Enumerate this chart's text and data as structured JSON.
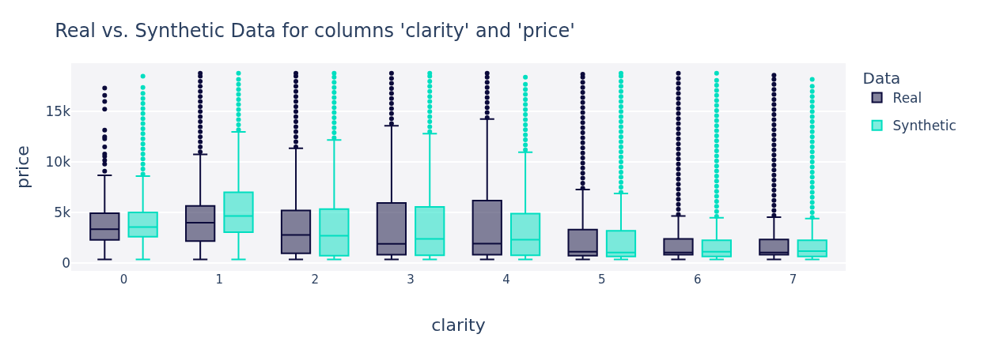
{
  "chart_data": {
    "type": "box",
    "title": "Real vs. Synthetic Data for columns 'clarity' and 'price'",
    "xlabel": "clarity",
    "ylabel": "price",
    "legend_title": "Data",
    "legend": "top right",
    "grid": "y",
    "categories": [
      "0",
      "1",
      "2",
      "3",
      "4",
      "5",
      "6",
      "7"
    ],
    "ylim": [
      -800,
      19800
    ],
    "yticks": [
      0,
      {
        "value": 5000,
        "label": "5k"
      },
      {
        "value": 10000,
        "label": "10k"
      },
      {
        "value": 15000,
        "label": "15k"
      }
    ],
    "series": [
      {
        "name": "Real",
        "color": "#0b0a3b",
        "boxes": [
          {
            "low": 330,
            "q1": 2280,
            "median": 3330,
            "q3": 4920,
            "high": 8680,
            "outliers": [
              9090,
              9800,
              10160,
              10560,
              10800,
              11500,
              12300,
              12500,
              13170,
              15240,
              16000,
              16600,
              17340
            ]
          },
          {
            "low": 330,
            "q1": 2150,
            "median": 3980,
            "q3": 5650,
            "high": 10750,
            "outliers": [
              11000,
              11500,
              12000,
              12500,
              13000,
              13500,
              14000,
              14500,
              15000,
              15500,
              16000,
              16500,
              17000,
              17500,
              18000,
              18500,
              18800
            ]
          },
          {
            "low": 330,
            "q1": 940,
            "median": 2770,
            "q3": 5190,
            "high": 11370,
            "outliers": [
              11500,
              12000,
              12500,
              13000,
              13500,
              14000,
              14500,
              15000,
              15500,
              16000,
              16500,
              17000,
              17500,
              18000,
              18500,
              18800
            ]
          },
          {
            "low": 330,
            "q1": 800,
            "median": 1880,
            "q3": 5940,
            "high": 13600,
            "outliers": [
              13800,
              14300,
              14800,
              15300,
              15800,
              16300,
              16800,
              17300,
              17800,
              18300,
              18800
            ]
          },
          {
            "low": 330,
            "q1": 800,
            "median": 1900,
            "q3": 6180,
            "high": 14250,
            "outliers": [
              14400,
              14900,
              15400,
              15900,
              16400,
              16900,
              17400,
              17900,
              18400,
              18800
            ]
          },
          {
            "low": 330,
            "q1": 700,
            "median": 1100,
            "q3": 3300,
            "high": 7260,
            "outliers": [
              7400,
              7900,
              8400,
              8900,
              9400,
              9900,
              10400,
              10900,
              11400,
              11900,
              12400,
              12900,
              13400,
              13900,
              14400,
              14900,
              15400,
              15900,
              16400,
              16900,
              17400,
              17900,
              18400,
              18700
            ]
          },
          {
            "low": 330,
            "q1": 800,
            "median": 1020,
            "q3": 2370,
            "high": 4650,
            "outliers": [
              4800,
              5300,
              5800,
              6300,
              6800,
              7300,
              7800,
              8300,
              8800,
              9300,
              9800,
              10300,
              10800,
              11300,
              11800,
              12300,
              12800,
              13300,
              13800,
              14300,
              14800,
              15300,
              15800,
              16300,
              16800,
              17300,
              17800,
              18300,
              18800
            ]
          },
          {
            "low": 330,
            "q1": 800,
            "median": 1020,
            "q3": 2310,
            "high": 4520,
            "outliers": [
              4700,
              5200,
              5700,
              6200,
              6700,
              7200,
              7700,
              8200,
              8700,
              9200,
              9700,
              10200,
              10700,
              11200,
              11700,
              12200,
              12700,
              13200,
              13700,
              14200,
              14700,
              15200,
              15700,
              16200,
              16700,
              17200,
              17700,
              18200,
              18600
            ]
          }
        ]
      },
      {
        "name": "Synthetic",
        "color": "#00dec0",
        "boxes": [
          {
            "low": 330,
            "q1": 2580,
            "median": 3550,
            "q3": 5000,
            "high": 8600,
            "outliers": [
              8800,
              9300,
              9800,
              10300,
              10800,
              11300,
              11800,
              12300,
              12800,
              13300,
              13800,
              14300,
              14800,
              15300,
              15800,
              16300,
              16800,
              17400,
              18500
            ]
          },
          {
            "low": 330,
            "q1": 3040,
            "median": 4650,
            "q3": 7000,
            "high": 12980,
            "outliers": [
              13200,
              13700,
              14200,
              14700,
              15200,
              15700,
              16200,
              16700,
              17200,
              17700,
              18200,
              18800
            ]
          },
          {
            "low": 330,
            "q1": 700,
            "median": 2690,
            "q3": 5320,
            "high": 12180,
            "outliers": [
              12400,
              12900,
              13400,
              13900,
              14400,
              14900,
              15400,
              15900,
              16400,
              16900,
              17400,
              17900,
              18400,
              18800
            ]
          },
          {
            "low": 330,
            "q1": 750,
            "median": 2370,
            "q3": 5540,
            "high": 12800,
            "outliers": [
              13000,
              13500,
              14000,
              14500,
              15000,
              15500,
              16000,
              16500,
              17000,
              17500,
              18000,
              18500,
              18800
            ]
          },
          {
            "low": 330,
            "q1": 750,
            "median": 2300,
            "q3": 4870,
            "high": 10970,
            "outliers": [
              11200,
              11700,
              12200,
              12700,
              13200,
              13700,
              14200,
              14700,
              15200,
              15700,
              16200,
              16700,
              17200,
              17700,
              18400
            ]
          },
          {
            "low": 330,
            "q1": 620,
            "median": 1020,
            "q3": 3170,
            "high": 6880,
            "outliers": [
              7000,
              7500,
              8000,
              8500,
              9000,
              9500,
              10000,
              10500,
              11000,
              11500,
              12000,
              12500,
              13000,
              13500,
              14000,
              14500,
              15000,
              15500,
              16000,
              16500,
              17000,
              17500,
              18000,
              18500,
              18800
            ]
          },
          {
            "low": 330,
            "q1": 620,
            "median": 1100,
            "q3": 2230,
            "high": 4460,
            "outliers": [
              4600,
              5100,
              5600,
              6100,
              6600,
              7100,
              7600,
              8100,
              8600,
              9100,
              9600,
              10100,
              10600,
              11100,
              11600,
              12100,
              12600,
              13100,
              13600,
              14100,
              14600,
              15100,
              15600,
              16100,
              16600,
              17100,
              17600,
              18100,
              18800
            ]
          },
          {
            "low": 330,
            "q1": 620,
            "median": 1150,
            "q3": 2230,
            "high": 4380,
            "outliers": [
              4500,
              5000,
              5500,
              6000,
              6500,
              7000,
              7500,
              8000,
              8500,
              9000,
              9500,
              10000,
              10500,
              11000,
              11500,
              12000,
              12500,
              13000,
              13500,
              14000,
              14500,
              15000,
              15500,
              16000,
              16500,
              17000,
              17500,
              18200
            ]
          }
        ]
      }
    ]
  }
}
